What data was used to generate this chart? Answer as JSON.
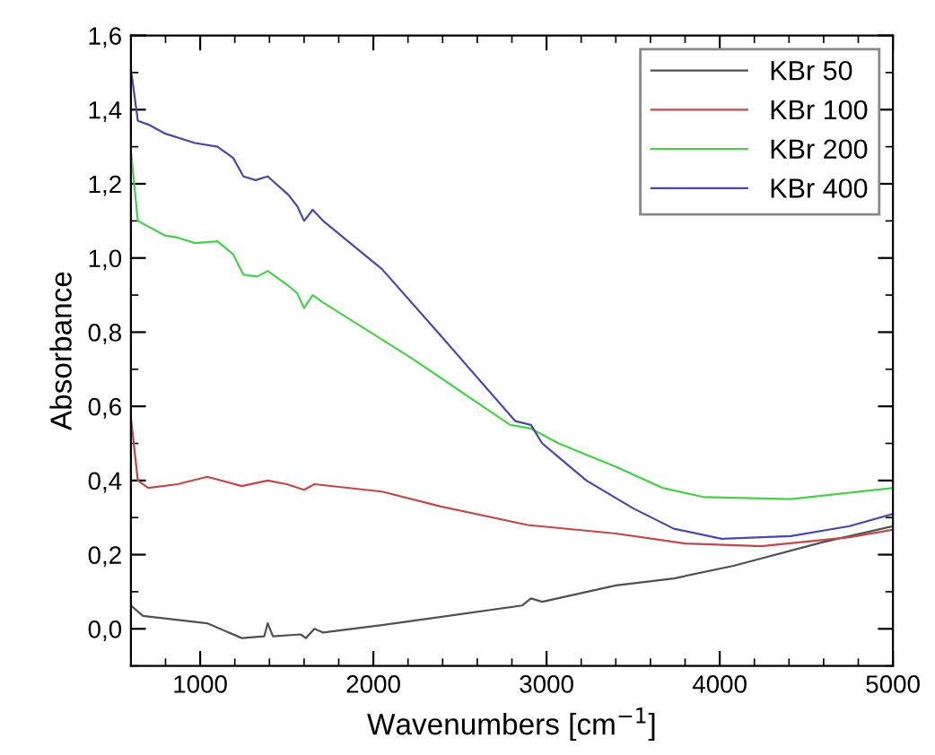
{
  "chart_data": {
    "type": "line",
    "xlabel": "Wavenumbers [cm$^{−1}$]",
    "ylabel": "Absorbance",
    "xlim": [
      600,
      5000
    ],
    "ylim": [
      -0.1,
      1.6
    ],
    "xticks": [
      {
        "value": 600,
        "label": null
      },
      {
        "value": 800,
        "label": null
      },
      1000,
      {
        "value": 1200,
        "label": null
      },
      {
        "value": 1400,
        "label": null
      },
      {
        "value": 1600,
        "label": null
      },
      {
        "value": 1800,
        "label": null
      },
      2000,
      {
        "value": 2200,
        "label": null
      },
      {
        "value": 2400,
        "label": null
      },
      {
        "value": 2600,
        "label": null
      },
      {
        "value": 2800,
        "label": null
      },
      3000,
      {
        "value": 3200,
        "label": null
      },
      {
        "value": 3400,
        "label": null
      },
      {
        "value": 3600,
        "label": null
      },
      {
        "value": 3800,
        "label": null
      },
      4000,
      {
        "value": 4200,
        "label": null
      },
      {
        "value": 4400,
        "label": null
      },
      {
        "value": 4600,
        "label": null
      },
      {
        "value": 4800,
        "label": null
      },
      5000
    ],
    "yticks": [
      {
        "value": -0.1,
        "label": null
      },
      {
        "value": 0.0,
        "label": "0,0"
      },
      {
        "value": 0.1,
        "label": null
      },
      {
        "value": 0.2,
        "label": "0,2"
      },
      {
        "value": 0.3,
        "label": null
      },
      {
        "value": 0.4,
        "label": "0,4"
      },
      {
        "value": 0.5,
        "label": null
      },
      {
        "value": 0.6,
        "label": "0,6"
      },
      {
        "value": 0.7,
        "label": null
      },
      {
        "value": 0.8,
        "label": "0,8"
      },
      {
        "value": 0.9,
        "label": null
      },
      {
        "value": 1.0,
        "label": "1,0"
      },
      {
        "value": 1.1,
        "label": null
      },
      {
        "value": 1.2,
        "label": "1,2"
      },
      {
        "value": 1.3,
        "label": null
      },
      {
        "value": 1.4,
        "label": "1,4"
      },
      {
        "value": 1.5,
        "label": null
      },
      {
        "value": 1.6,
        "label": "1,6"
      }
    ],
    "grid": false,
    "legend": "top right",
    "marker": "none",
    "line_style": "solid",
    "series": [
      {
        "name": "KBr 50",
        "color": "#505050",
        "x": [
          600,
          670,
          1040,
          1240,
          1370,
          1390,
          1420,
          1580,
          1610,
          1660,
          1710,
          2050,
          2860,
          2910,
          2975,
          3400,
          3735,
          4080,
          4590,
          5000
        ],
        "values": [
          0.063,
          0.035,
          0.015,
          -0.025,
          -0.02,
          0.015,
          -0.02,
          -0.015,
          -0.025,
          0.0,
          -0.01,
          0.01,
          0.063,
          0.082,
          0.073,
          0.117,
          0.136,
          0.17,
          0.233,
          0.277
        ]
      },
      {
        "name": "KBr 100",
        "color": "#c04848",
        "x": [
          600,
          640,
          700,
          870,
          1040,
          1240,
          1390,
          1500,
          1600,
          1660,
          2050,
          2390,
          2890,
          3400,
          3800,
          4240,
          4750,
          5000
        ],
        "values": [
          0.57,
          0.4,
          0.38,
          0.39,
          0.41,
          0.385,
          0.4,
          0.39,
          0.375,
          0.39,
          0.37,
          0.33,
          0.28,
          0.257,
          0.23,
          0.223,
          0.247,
          0.267
        ]
      },
      {
        "name": "KBr 200",
        "color": "#48d048",
        "x": [
          600,
          640,
          800,
          870,
          970,
          1100,
          1190,
          1250,
          1330,
          1390,
          1510,
          1560,
          1600,
          1650,
          1710,
          2220,
          2790,
          2910,
          3070,
          3400,
          3670,
          3910,
          4410,
          5000
        ],
        "values": [
          1.29,
          1.1,
          1.06,
          1.055,
          1.04,
          1.045,
          1.01,
          0.955,
          0.95,
          0.965,
          0.925,
          0.905,
          0.865,
          0.9,
          0.88,
          0.73,
          0.55,
          0.54,
          0.5,
          0.437,
          0.38,
          0.355,
          0.35,
          0.38
        ]
      },
      {
        "name": "KBr 400",
        "color": "#4848a8",
        "x": [
          600,
          640,
          700,
          800,
          970,
          1100,
          1190,
          1250,
          1320,
          1390,
          1510,
          1560,
          1600,
          1650,
          1710,
          2050,
          2390,
          2820,
          2910,
          2975,
          3230,
          3500,
          3735,
          4010,
          4410,
          4750,
          5000
        ],
        "values": [
          1.51,
          1.37,
          1.36,
          1.335,
          1.31,
          1.3,
          1.27,
          1.22,
          1.21,
          1.22,
          1.17,
          1.14,
          1.1,
          1.13,
          1.1,
          0.97,
          0.79,
          0.56,
          0.55,
          0.5,
          0.4,
          0.325,
          0.27,
          0.243,
          0.25,
          0.277,
          0.31
        ]
      }
    ]
  }
}
